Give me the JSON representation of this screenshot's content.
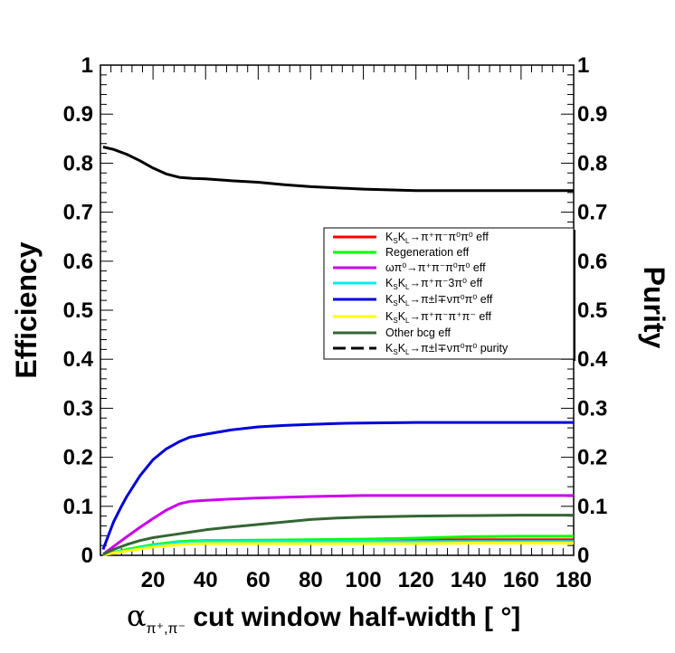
{
  "chart_data": {
    "type": "line",
    "xlabel_sub": "π⁺,π⁻",
    "xlabel_rest": " cut window half-width [ °]",
    "ylabel_left": "Efficiency",
    "ylabel_right": "Purity",
    "xlim": [
      0,
      180
    ],
    "ylim": [
      0,
      1
    ],
    "x_ticks": [
      20,
      40,
      60,
      80,
      100,
      120,
      140,
      160,
      180
    ],
    "y_ticks": [
      0,
      0.1,
      0.2,
      0.3,
      0.4,
      0.5,
      0.6,
      0.7,
      0.8,
      0.9,
      1
    ],
    "y_tick_labels": [
      "0",
      "0.1",
      "0.2",
      "0.3",
      "0.4",
      "0.5",
      "0.6",
      "0.7",
      "0.8",
      "0.9",
      "1"
    ],
    "x_tick_labels": [
      "20",
      "40",
      "60",
      "80",
      "100",
      "120",
      "140",
      "160",
      "180"
    ],
    "grid": false,
    "legend_position": "center-right",
    "series": [
      {
        "name": "KSKL→π⁺π⁻π⁰π⁰ eff",
        "color": "#ff0000",
        "dash": "solid",
        "x": [
          1,
          10,
          20,
          30,
          34,
          40,
          60,
          80,
          100,
          120,
          140,
          160,
          180
        ],
        "y": [
          0.001,
          0.01,
          0.02,
          0.027,
          0.029,
          0.03,
          0.03,
          0.031,
          0.031,
          0.031,
          0.032,
          0.032,
          0.032
        ]
      },
      {
        "name": "Regeneration eff",
        "color": "#00ff00",
        "dash": "solid",
        "x": [
          1,
          10,
          20,
          30,
          34,
          40,
          60,
          80,
          100,
          120,
          140,
          160,
          180
        ],
        "y": [
          0.001,
          0.012,
          0.022,
          0.028,
          0.029,
          0.03,
          0.031,
          0.032,
          0.033,
          0.035,
          0.038,
          0.039,
          0.039
        ]
      },
      {
        "name": "ωπ⁰→π⁺π⁻π⁰π⁰ eff",
        "color": "#cc00ee",
        "dash": "solid",
        "x": [
          1,
          5,
          10,
          15,
          20,
          25,
          30,
          34,
          40,
          50,
          60,
          80,
          100,
          120,
          140,
          160,
          180
        ],
        "y": [
          0.002,
          0.018,
          0.038,
          0.057,
          0.075,
          0.092,
          0.105,
          0.11,
          0.112,
          0.115,
          0.117,
          0.12,
          0.122,
          0.122,
          0.122,
          0.122,
          0.122
        ]
      },
      {
        "name": "KSKL→π⁺π⁻3π⁰ eff",
        "color": "#00eeee",
        "dash": "solid",
        "x": [
          1,
          10,
          20,
          30,
          34,
          40,
          60,
          80,
          100,
          120,
          140,
          160,
          180
        ],
        "y": [
          0.001,
          0.01,
          0.02,
          0.026,
          0.027,
          0.028,
          0.028,
          0.028,
          0.028,
          0.028,
          0.028,
          0.028,
          0.028
        ]
      },
      {
        "name": "KSKL→π±l∓νπ⁰π⁰ eff",
        "color": "#0000dd",
        "dash": "solid",
        "x": [
          1,
          3,
          5,
          8,
          10,
          15,
          20,
          25,
          30,
          34,
          40,
          50,
          60,
          70,
          80,
          90,
          100,
          120,
          140,
          160,
          180
        ],
        "y": [
          0.012,
          0.04,
          0.068,
          0.1,
          0.12,
          0.162,
          0.195,
          0.217,
          0.232,
          0.241,
          0.247,
          0.256,
          0.262,
          0.265,
          0.267,
          0.269,
          0.27,
          0.271,
          0.271,
          0.271,
          0.271
        ]
      },
      {
        "name": "KSKL→π⁺π⁻π⁺π⁻ eff",
        "color": "#ffff00",
        "dash": "solid",
        "x": [
          1,
          10,
          20,
          30,
          34,
          40,
          60,
          80,
          100,
          120,
          140,
          160,
          180
        ],
        "y": [
          0.001,
          0.009,
          0.017,
          0.022,
          0.023,
          0.024,
          0.024,
          0.024,
          0.024,
          0.024,
          0.025,
          0.025,
          0.025
        ]
      },
      {
        "name": "Other bcg eff",
        "color": "#336633",
        "dash": "solid",
        "x": [
          1,
          5,
          10,
          15,
          20,
          25,
          30,
          35,
          40,
          50,
          60,
          70,
          80,
          90,
          100,
          120,
          140,
          160,
          180
        ],
        "y": [
          0.002,
          0.012,
          0.022,
          0.03,
          0.036,
          0.04,
          0.044,
          0.048,
          0.052,
          0.058,
          0.063,
          0.068,
          0.073,
          0.076,
          0.078,
          0.08,
          0.081,
          0.082,
          0.082
        ]
      },
      {
        "name": "KSKL→π±l∓νπ⁰π⁰ purity",
        "color": "#000000",
        "dash": "dashed",
        "x": [
          1,
          5,
          10,
          15,
          20,
          25,
          30,
          35,
          40,
          50,
          60,
          70,
          80,
          100,
          120,
          140,
          160,
          180
        ],
        "y": [
          0.833,
          0.828,
          0.818,
          0.805,
          0.79,
          0.778,
          0.771,
          0.769,
          0.768,
          0.764,
          0.761,
          0.756,
          0.752,
          0.747,
          0.744,
          0.744,
          0.744,
          0.744
        ]
      }
    ]
  },
  "legend": {
    "items": [
      {
        "pre": "K",
        "s1": "S",
        "mid": "K",
        "s2": "L",
        "post": "→π⁺π⁻π⁰π⁰ eff"
      },
      {
        "pre": "Regeneration eff",
        "s1": "",
        "mid": "",
        "s2": "",
        "post": ""
      },
      {
        "pre": "ωπ⁰→π⁺π⁻π⁰π⁰ eff",
        "s1": "",
        "mid": "",
        "s2": "",
        "post": ""
      },
      {
        "pre": "K",
        "s1": "S",
        "mid": "K",
        "s2": "L",
        "post": "→π⁺π⁻3π⁰ eff"
      },
      {
        "pre": "K",
        "s1": "S",
        "mid": "K",
        "s2": "L",
        "post": "→π±l∓νπ⁰π⁰ eff"
      },
      {
        "pre": "K",
        "s1": "S",
        "mid": "K",
        "s2": "L",
        "post": "→π⁺π⁻π⁺π⁻ eff"
      },
      {
        "pre": "Other bcg eff",
        "s1": "",
        "mid": "",
        "s2": "",
        "post": ""
      },
      {
        "pre": "K",
        "s1": "S",
        "mid": "K",
        "s2": "L",
        "post": "→π±l∓νπ⁰π⁰ purity"
      }
    ]
  }
}
